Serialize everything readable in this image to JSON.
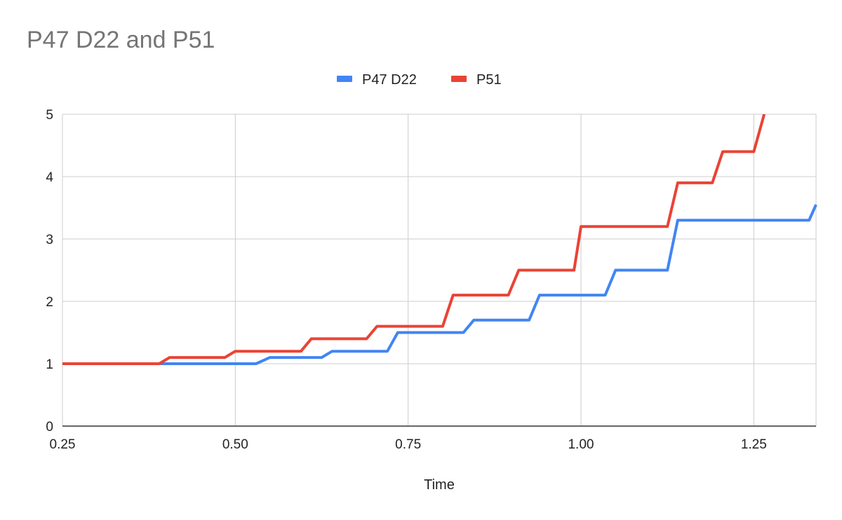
{
  "chart_data": {
    "type": "line",
    "title": "P47 D22 and P51",
    "xlabel": "Time",
    "ylabel": "",
    "xlim": [
      0.25,
      1.34
    ],
    "ylim": [
      0,
      5
    ],
    "x_ticks": [
      "0.25",
      "0.50",
      "0.75",
      "1.00",
      "1.25"
    ],
    "y_ticks": [
      "0",
      "1",
      "2",
      "3",
      "4",
      "5"
    ],
    "grid": true,
    "legend_position": "top",
    "series": [
      {
        "name": "P47 D22",
        "color": "#4285f4",
        "points": [
          [
            0.25,
            1.0
          ],
          [
            0.53,
            1.0
          ],
          [
            0.55,
            1.1
          ],
          [
            0.625,
            1.1
          ],
          [
            0.64,
            1.2
          ],
          [
            0.72,
            1.2
          ],
          [
            0.735,
            1.5
          ],
          [
            0.83,
            1.5
          ],
          [
            0.845,
            1.7
          ],
          [
            0.925,
            1.7
          ],
          [
            0.94,
            2.1
          ],
          [
            1.035,
            2.1
          ],
          [
            1.05,
            2.5
          ],
          [
            1.125,
            2.5
          ],
          [
            1.14,
            3.3
          ],
          [
            1.33,
            3.3
          ],
          [
            1.34,
            3.55
          ]
        ]
      },
      {
        "name": "P51",
        "color": "#ea4335",
        "points": [
          [
            0.25,
            1.0
          ],
          [
            0.39,
            1.0
          ],
          [
            0.405,
            1.1
          ],
          [
            0.485,
            1.1
          ],
          [
            0.5,
            1.2
          ],
          [
            0.595,
            1.2
          ],
          [
            0.61,
            1.4
          ],
          [
            0.69,
            1.4
          ],
          [
            0.705,
            1.6
          ],
          [
            0.8,
            1.6
          ],
          [
            0.815,
            2.1
          ],
          [
            0.895,
            2.1
          ],
          [
            0.91,
            2.5
          ],
          [
            0.99,
            2.5
          ],
          [
            1.0,
            3.2
          ],
          [
            1.125,
            3.2
          ],
          [
            1.14,
            3.9
          ],
          [
            1.19,
            3.9
          ],
          [
            1.205,
            4.4
          ],
          [
            1.25,
            4.4
          ],
          [
            1.265,
            5.0
          ]
        ]
      }
    ]
  }
}
